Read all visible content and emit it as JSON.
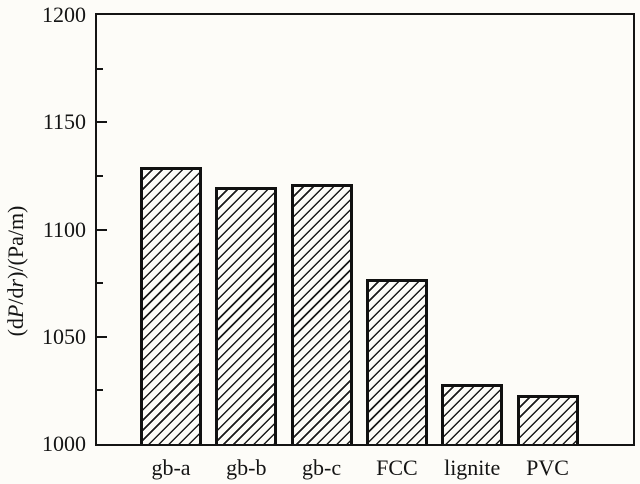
{
  "chart_data": {
    "type": "bar",
    "categories": [
      "gb-a",
      "gb-b",
      "gb-c",
      "FCC",
      "lignite",
      "PVC"
    ],
    "values": [
      1129,
      1120,
      1121,
      1077,
      1028,
      1023
    ],
    "title": "",
    "xlabel": "",
    "ylabel": "(dP/dr)/(Pa/m)",
    "ylabel_parts": [
      "(d",
      "P",
      "/d",
      "r",
      ")/(Pa/m)"
    ],
    "ylim": [
      1000,
      1200
    ],
    "yticks_major": [
      1000,
      1050,
      1100,
      1150,
      1200
    ],
    "yticks_minor": [
      1025,
      1075,
      1125,
      1175
    ],
    "grid": false,
    "legend": null,
    "bar_fill": "hatch-forward-diagonal",
    "colors": {
      "line": "#141414",
      "background": "#fdfcf8"
    }
  }
}
